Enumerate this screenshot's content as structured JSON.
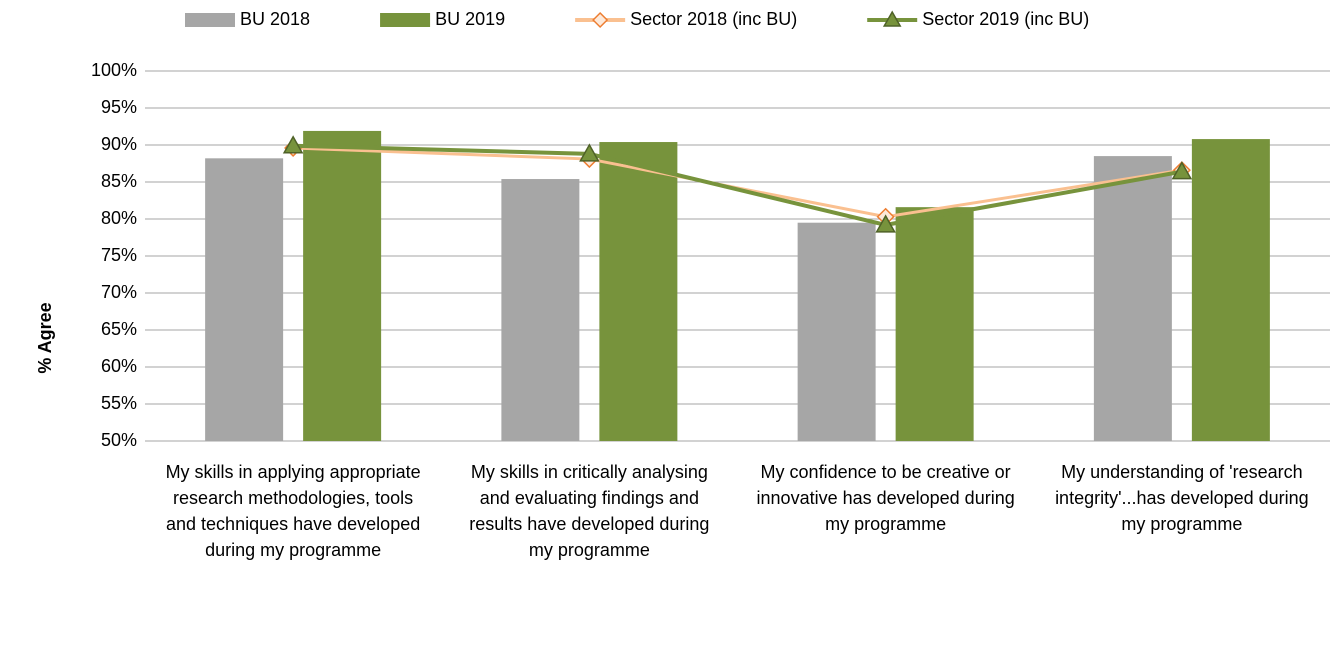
{
  "chart_data": {
    "type": "bar_line",
    "y_label": "% Agree",
    "categories": [
      "My skills in applying appropriate research methodologies, tools and techniques have developed during my programme",
      "My skills in critically analysing and evaluating findings and results have developed during my programme",
      "My confidence to be creative or innovative has developed during my programme",
      "My understanding of 'research integrity'...has developed during my programme"
    ],
    "series": [
      {
        "name": "BU 2018",
        "kind": "bar",
        "color": "#a6a6a6",
        "values": [
          88.2,
          85.4,
          79.5,
          88.5
        ]
      },
      {
        "name": "BU 2019",
        "kind": "bar",
        "color": "#77933c",
        "values": [
          91.9,
          90.4,
          81.6,
          90.8
        ]
      },
      {
        "name": "Sector 2018 (inc BU)",
        "kind": "line",
        "marker": "diamond",
        "color": "#fac090",
        "marker_color": "#ed7d31",
        "values": [
          89.6,
          88.1,
          80.3,
          86.6
        ]
      },
      {
        "name": "Sector 2019 (inc BU)",
        "kind": "line",
        "marker": "triangle",
        "color": "#77933c",
        "marker_color": "#4f6228",
        "values": [
          89.9,
          88.8,
          79.2,
          86.4
        ]
      }
    ],
    "ylim": [
      50,
      100
    ],
    "yticks": [
      {
        "value": 50,
        "label": "50%"
      },
      {
        "value": 55,
        "label": "55%"
      },
      {
        "value": 60,
        "label": "60%"
      },
      {
        "value": 65,
        "label": "65%"
      },
      {
        "value": 70,
        "label": "70%"
      },
      {
        "value": 75,
        "label": "75%"
      },
      {
        "value": 80,
        "label": "80%"
      },
      {
        "value": 85,
        "label": "85%"
      },
      {
        "value": 90,
        "label": "90%"
      },
      {
        "value": 95,
        "label": "95%"
      },
      {
        "value": 100,
        "label": "100%"
      }
    ],
    "grid": true,
    "legend": "top"
  }
}
